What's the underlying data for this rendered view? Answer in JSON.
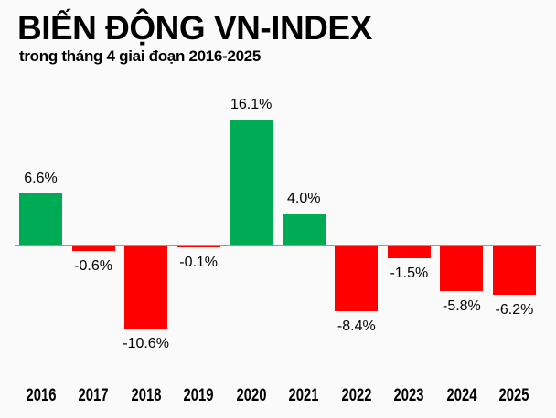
{
  "page": {
    "title": "BIẾN ĐỘNG VN-INDEX",
    "subtitle": "trong tháng 4 giai đoạn 2016-2025"
  },
  "colors": {
    "positive_bar": "#00AB55",
    "negative_bar": "#FF0000",
    "axis_line": "#999999",
    "background": "#FAFAFA",
    "text": "#000000"
  },
  "chart_data": {
    "type": "bar",
    "title": "BIẾN ĐỘNG VN-INDEX",
    "subtitle": "trong tháng 4 giai đoạn 2016-2025",
    "categories": [
      "2016",
      "2017",
      "2018",
      "2019",
      "2020",
      "2021",
      "2022",
      "2023",
      "2024",
      "2025"
    ],
    "values": [
      6.6,
      -0.6,
      -10.6,
      -0.1,
      16.1,
      4.0,
      -8.4,
      -1.5,
      -5.8,
      -6.2
    ],
    "data_labels": [
      "6.6%",
      "-0.6%",
      "-10.6%",
      "-0.1%",
      "16.1%",
      "4.0%",
      "-8.4%",
      "-1.5%",
      "-5.8%",
      "-6.2%"
    ],
    "unit": "%",
    "xlabel": "",
    "ylabel": "",
    "ylim": [
      -12,
      18
    ],
    "grid": false,
    "legend": false,
    "positive_color": "#00AB55",
    "negative_color": "#FF0000",
    "baseline": 0
  }
}
